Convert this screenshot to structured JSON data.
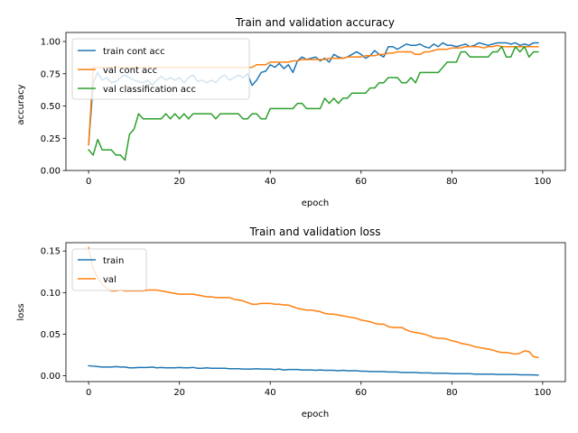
{
  "chart_data": [
    {
      "type": "line",
      "title": "Train and validation accuracy",
      "xlabel": "epoch",
      "ylabel": "accuracy",
      "xlim": [
        -5,
        105
      ],
      "ylim": [
        0.0,
        1.07
      ],
      "xticks": [
        "0",
        "20",
        "40",
        "60",
        "80",
        "100"
      ],
      "xtick_values": [
        0,
        20,
        40,
        60,
        80,
        100
      ],
      "yticks": [
        "0.00",
        "0.25",
        "0.50",
        "0.75",
        "1.00"
      ],
      "ytick_values": [
        0,
        0.25,
        0.5,
        0.75,
        1.0
      ],
      "legend_position": "upper-left",
      "grid": false,
      "series": [
        {
          "name": "train cont acc",
          "color": "#1f77b4",
          "values": [
            0.2,
            0.68,
            0.76,
            0.7,
            0.72,
            0.68,
            0.69,
            0.72,
            0.74,
            0.72,
            0.7,
            0.69,
            0.68,
            0.7,
            0.66,
            0.7,
            0.73,
            0.7,
            0.72,
            0.7,
            0.72,
            0.68,
            0.72,
            0.74,
            0.69,
            0.7,
            0.68,
            0.7,
            0.68,
            0.72,
            0.74,
            0.7,
            0.72,
            0.74,
            0.72,
            0.75,
            0.66,
            0.7,
            0.76,
            0.77,
            0.82,
            0.8,
            0.83,
            0.79,
            0.82,
            0.76,
            0.85,
            0.88,
            0.86,
            0.87,
            0.88,
            0.85,
            0.87,
            0.84,
            0.9,
            0.88,
            0.87,
            0.88,
            0.9,
            0.92,
            0.9,
            0.87,
            0.89,
            0.93,
            0.9,
            0.88,
            0.96,
            0.96,
            0.94,
            0.96,
            0.98,
            0.97,
            0.97,
            0.98,
            0.96,
            0.95,
            0.98,
            0.96,
            0.99,
            0.97,
            0.97,
            0.96,
            0.97,
            0.98,
            0.96,
            0.97,
            0.99,
            0.98,
            0.97,
            0.98,
            0.99,
            0.99,
            0.99,
            0.98,
            0.99,
            0.97,
            0.98,
            0.97,
            0.99,
            0.99
          ]
        },
        {
          "name": "val cont acc",
          "color": "#ff7f0e",
          "values": [
            0.2,
            0.8,
            0.8,
            0.8,
            0.8,
            0.8,
            0.8,
            0.8,
            0.8,
            0.8,
            0.8,
            0.8,
            0.8,
            0.8,
            0.8,
            0.8,
            0.8,
            0.8,
            0.8,
            0.8,
            0.8,
            0.8,
            0.8,
            0.8,
            0.8,
            0.8,
            0.8,
            0.8,
            0.8,
            0.8,
            0.8,
            0.8,
            0.8,
            0.8,
            0.8,
            0.8,
            0.8,
            0.82,
            0.82,
            0.82,
            0.84,
            0.84,
            0.84,
            0.84,
            0.84,
            0.85,
            0.85,
            0.86,
            0.86,
            0.86,
            0.86,
            0.86,
            0.86,
            0.87,
            0.87,
            0.87,
            0.87,
            0.88,
            0.88,
            0.88,
            0.88,
            0.89,
            0.89,
            0.89,
            0.9,
            0.9,
            0.91,
            0.91,
            0.92,
            0.92,
            0.92,
            0.92,
            0.9,
            0.9,
            0.92,
            0.92,
            0.93,
            0.94,
            0.94,
            0.94,
            0.95,
            0.95,
            0.95,
            0.96,
            0.96,
            0.96,
            0.96,
            0.95,
            0.96,
            0.96,
            0.97,
            0.96,
            0.96,
            0.96,
            0.96,
            0.96,
            0.96,
            0.96,
            0.96,
            0.96
          ]
        },
        {
          "name": "val classification acc",
          "color": "#2ca02c",
          "values": [
            0.16,
            0.12,
            0.24,
            0.16,
            0.16,
            0.16,
            0.12,
            0.12,
            0.08,
            0.28,
            0.32,
            0.44,
            0.4,
            0.4,
            0.4,
            0.4,
            0.4,
            0.44,
            0.4,
            0.44,
            0.4,
            0.44,
            0.4,
            0.44,
            0.44,
            0.44,
            0.44,
            0.44,
            0.4,
            0.44,
            0.44,
            0.44,
            0.44,
            0.44,
            0.4,
            0.4,
            0.44,
            0.44,
            0.4,
            0.4,
            0.48,
            0.48,
            0.48,
            0.48,
            0.48,
            0.48,
            0.52,
            0.52,
            0.48,
            0.48,
            0.48,
            0.48,
            0.56,
            0.52,
            0.56,
            0.52,
            0.56,
            0.56,
            0.6,
            0.6,
            0.6,
            0.6,
            0.64,
            0.64,
            0.68,
            0.68,
            0.72,
            0.72,
            0.72,
            0.68,
            0.68,
            0.72,
            0.68,
            0.76,
            0.76,
            0.76,
            0.76,
            0.76,
            0.8,
            0.84,
            0.84,
            0.84,
            0.92,
            0.92,
            0.88,
            0.88,
            0.88,
            0.88,
            0.88,
            0.92,
            0.92,
            0.96,
            0.88,
            0.88,
            0.96,
            0.92,
            0.96,
            0.88,
            0.92,
            0.92
          ]
        }
      ]
    },
    {
      "type": "line",
      "title": "Train and validation loss",
      "xlabel": "epoch",
      "ylabel": "loss",
      "xlim": [
        -5,
        105
      ],
      "ylim": [
        -0.007,
        0.16
      ],
      "xticks": [
        "0",
        "20",
        "40",
        "60",
        "80",
        "100"
      ],
      "xtick_values": [
        0,
        20,
        40,
        60,
        80,
        100
      ],
      "yticks": [
        "0.00",
        "0.05",
        "0.10",
        "0.15"
      ],
      "ytick_values": [
        0,
        0.05,
        0.1,
        0.15
      ],
      "legend_position": "upper-left",
      "grid": false,
      "series": [
        {
          "name": "train",
          "color": "#1f77b4",
          "values": [
            0.012,
            0.0115,
            0.011,
            0.0105,
            0.0105,
            0.0105,
            0.011,
            0.0105,
            0.0105,
            0.0095,
            0.0095,
            0.01,
            0.01,
            0.01,
            0.0105,
            0.0095,
            0.01,
            0.0095,
            0.0095,
            0.0095,
            0.01,
            0.0095,
            0.0095,
            0.01,
            0.009,
            0.009,
            0.0095,
            0.009,
            0.009,
            0.009,
            0.009,
            0.0085,
            0.0085,
            0.0085,
            0.008,
            0.008,
            0.008,
            0.0085,
            0.008,
            0.008,
            0.008,
            0.0075,
            0.008,
            0.007,
            0.0075,
            0.0075,
            0.0075,
            0.007,
            0.007,
            0.007,
            0.0065,
            0.007,
            0.0065,
            0.0065,
            0.0065,
            0.006,
            0.0065,
            0.006,
            0.006,
            0.006,
            0.0055,
            0.0055,
            0.005,
            0.005,
            0.005,
            0.005,
            0.0045,
            0.0045,
            0.0045,
            0.004,
            0.004,
            0.004,
            0.004,
            0.0035,
            0.0035,
            0.0035,
            0.003,
            0.003,
            0.003,
            0.003,
            0.0025,
            0.0025,
            0.0025,
            0.0025,
            0.0025,
            0.002,
            0.002,
            0.002,
            0.002,
            0.002,
            0.0015,
            0.0015,
            0.0015,
            0.0015,
            0.0015,
            0.0012,
            0.0012,
            0.0012,
            0.001,
            0.0008
          ]
        },
        {
          "name": "val",
          "color": "#ff7f0e",
          "values": [
            0.154,
            0.128,
            0.118,
            0.11,
            0.105,
            0.102,
            0.102,
            0.103,
            0.102,
            0.102,
            0.102,
            0.102,
            0.102,
            0.103,
            0.103,
            0.103,
            0.102,
            0.101,
            0.1,
            0.099,
            0.098,
            0.098,
            0.098,
            0.098,
            0.097,
            0.096,
            0.095,
            0.095,
            0.094,
            0.094,
            0.094,
            0.094,
            0.092,
            0.091,
            0.09,
            0.088,
            0.086,
            0.086,
            0.087,
            0.087,
            0.087,
            0.086,
            0.086,
            0.085,
            0.085,
            0.083,
            0.081,
            0.08,
            0.079,
            0.079,
            0.078,
            0.077,
            0.075,
            0.074,
            0.074,
            0.073,
            0.072,
            0.071,
            0.07,
            0.069,
            0.067,
            0.066,
            0.065,
            0.063,
            0.062,
            0.062,
            0.059,
            0.058,
            0.058,
            0.058,
            0.055,
            0.053,
            0.052,
            0.051,
            0.05,
            0.048,
            0.046,
            0.045,
            0.045,
            0.044,
            0.042,
            0.041,
            0.039,
            0.038,
            0.037,
            0.035,
            0.034,
            0.033,
            0.032,
            0.031,
            0.029,
            0.028,
            0.028,
            0.027,
            0.026,
            0.027,
            0.03,
            0.029,
            0.023,
            0.022
          ]
        }
      ]
    }
  ]
}
